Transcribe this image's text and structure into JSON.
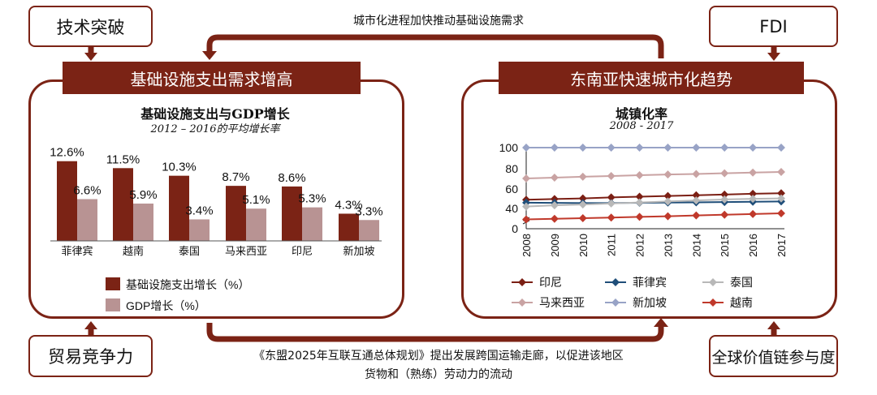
{
  "colors": {
    "brand": "#7b2315",
    "bar_infra": "#7b2315",
    "bar_gdp": "#b89393"
  },
  "top_left_box": "技术突破",
  "top_right_box": "FDI",
  "bottom_left_box": "贸易竞争力",
  "bottom_right_box": "全球价值链参与度",
  "top_arrow_label": "城市化进程加快推动基础设施需求",
  "bottom_arrow_label": [
    "《东盟2025年互联互通总体规划》提出发展跨国运输走廊，以促进该地区",
    "货物和（熟练）劳动力的流动"
  ],
  "left_panel": {
    "header": "基础设施支出需求增高"
  },
  "right_panel": {
    "header": "东南亚快速城市化趋势"
  },
  "chart_data": [
    {
      "type": "bar",
      "title": "基础设施支出与GDP增长",
      "subtitle": "2012 – 2016的平均增长率",
      "categories": [
        "菲律宾",
        "越南",
        "泰国",
        "马来西亚",
        "印尼",
        "新加坡"
      ],
      "series": [
        {
          "name": "基础设施支出增长（%）",
          "color": "#7b2315",
          "values": [
            12.6,
            11.5,
            10.3,
            8.7,
            8.6,
            4.3
          ],
          "labels": [
            "12.6%",
            "11.5%",
            "10.3%",
            "8.7%",
            "8.6%",
            "4.3%"
          ]
        },
        {
          "name": "GDP增长（%）",
          "color": "#b89393",
          "values": [
            6.6,
            5.9,
            3.4,
            5.1,
            5.3,
            3.3
          ],
          "labels": [
            "6.6%",
            "5.9%",
            "3.4%",
            "5.1%",
            "5.3%",
            "3.3%"
          ]
        }
      ],
      "legend": "bottom"
    },
    {
      "type": "line",
      "title": "城镇化率",
      "subtitle": "2008 - 2017",
      "x": [
        "2008",
        "2009",
        "2010",
        "2011",
        "2012",
        "2013",
        "2014",
        "2015",
        "2016",
        "2017"
      ],
      "yticks": [
        "0",
        "40",
        "60",
        "80",
        "100"
      ],
      "ylim": [
        0,
        100
      ],
      "axis_break": "between 0 and 40",
      "series": [
        {
          "name": "印尼",
          "color": "#7b1f14",
          "values": [
            48.6,
            49.3,
            49.9,
            50.9,
            51.6,
            52.3,
            53.0,
            53.7,
            54.5,
            55.0
          ]
        },
        {
          "name": "菲律宾",
          "color": "#1f4e79",
          "values": [
            45.7,
            45.5,
            45.3,
            45.3,
            45.6,
            45.8,
            46.0,
            46.3,
            46.6,
            46.9
          ]
        },
        {
          "name": "泰国",
          "color": "#b8b8b8",
          "values": [
            41.9,
            43.1,
            43.9,
            44.9,
            45.9,
            46.9,
            47.9,
            48.9,
            49.5,
            49.9
          ]
        },
        {
          "name": "马来西亚",
          "color": "#c9a3a3",
          "values": [
            69.6,
            70.4,
            71.3,
            72.0,
            72.8,
            73.5,
            74.0,
            74.7,
            75.4,
            76.0
          ]
        },
        {
          "name": "新加坡",
          "color": "#98a3c6",
          "values": [
            100,
            100,
            100,
            100,
            100,
            100,
            100,
            100,
            100,
            100
          ]
        },
        {
          "name": "越南",
          "color": "#c0392b",
          "values": [
            29.2,
            29.8,
            30.4,
            31.0,
            31.7,
            32.3,
            33.1,
            33.8,
            34.5,
            35.2
          ]
        }
      ],
      "legend": "bottom"
    }
  ]
}
